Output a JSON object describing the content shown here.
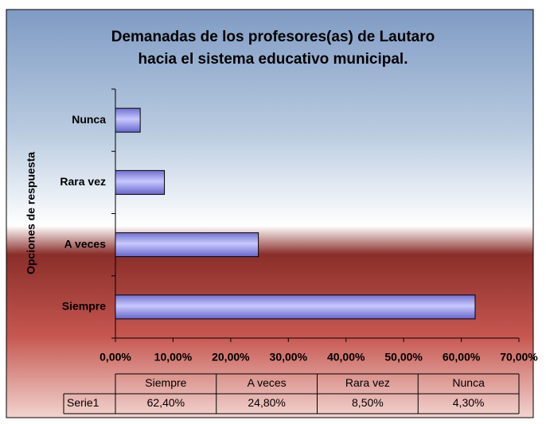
{
  "chart_data": {
    "type": "bar",
    "orientation": "horizontal",
    "title": [
      "Demanadas de los profesores(as) de Lautaro",
      "hacia el sistema educativo municipal."
    ],
    "y_label": "Opciones de respuesta",
    "categories": [
      "Siempre",
      "A veces",
      "Rara vez",
      "Nunca"
    ],
    "series": [
      {
        "name": "Serie1",
        "color": "#9999ff",
        "values": [
          62.4,
          24.8,
          8.5,
          4.3
        ],
        "value_labels": [
          "62,40%",
          "24,80%",
          "8,50%",
          "4,30%"
        ]
      }
    ],
    "xlim": [
      0,
      70
    ],
    "xticks": [
      {
        "value": 0,
        "label": "0,00%"
      },
      {
        "value": 10,
        "label": "10,00%"
      },
      {
        "value": 20,
        "label": "20,00%"
      },
      {
        "value": 30,
        "label": "30,00%"
      },
      {
        "value": 40,
        "label": "40,00%"
      },
      {
        "value": 50,
        "label": "50,00%"
      },
      {
        "value": 60,
        "label": "60,00%"
      },
      {
        "value": 70,
        "label": "70,00%"
      }
    ],
    "data_table": true
  }
}
